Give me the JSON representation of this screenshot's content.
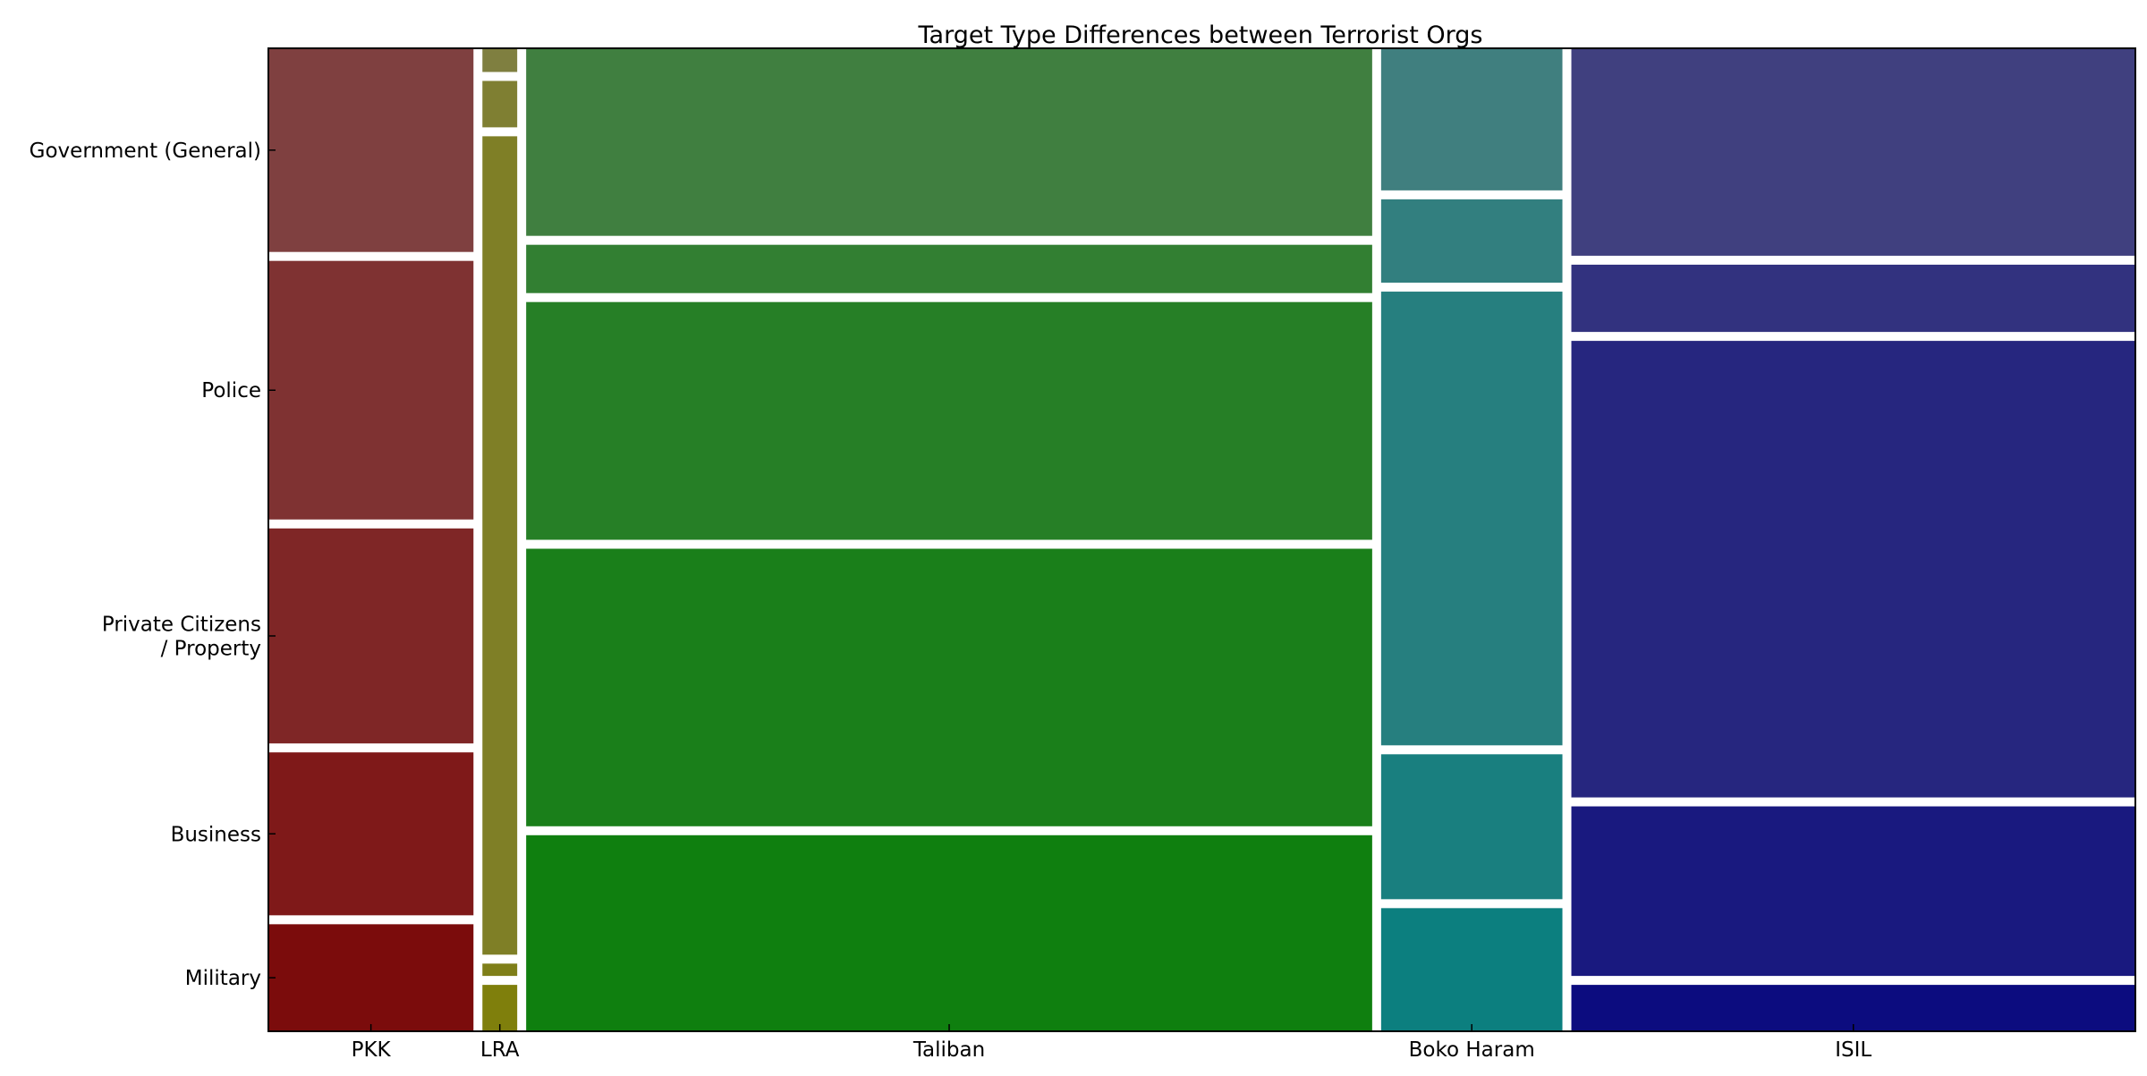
{
  "chart_data": {
    "type": "mosaic",
    "title": "Target Type Differences between Terrorist Orgs",
    "xlabel": "",
    "ylabel": "",
    "x_categories": [
      "PKK",
      "LRA",
      "Taliban",
      "Boko Haram",
      "ISIL"
    ],
    "y_categories": [
      "Government (General)",
      "Police",
      "Private Citizens\n/ Property",
      "Business",
      "Military"
    ],
    "column_share": [
      0.112,
      0.019,
      0.462,
      0.099,
      0.308
    ],
    "cell_share": [
      [
        0.113,
        0.172,
        0.227,
        0.273,
        0.215
      ],
      [
        0.049,
        0.013,
        0.864,
        0.049,
        0.025
      ],
      [
        0.207,
        0.293,
        0.251,
        0.051,
        0.198
      ],
      [
        0.13,
        0.153,
        0.479,
        0.088,
        0.15
      ],
      [
        0.049,
        0.179,
        0.482,
        0.071,
        0.219
      ]
    ],
    "colors": [
      [
        "#7b0c0c",
        "#7f1919",
        "#7f2626",
        "#7f3232",
        "#7f4040"
      ],
      [
        "#7f7f0c",
        "#7f7f19",
        "#7f7f26",
        "#7f7f32",
        "#7f7f40"
      ],
      [
        "#0f7f0f",
        "#1a7f1a",
        "#267f26",
        "#327f32",
        "#407f40"
      ],
      [
        "#0c7f7f",
        "#197f7f",
        "#267f7f",
        "#327f7f",
        "#407f7f"
      ],
      [
        "#0c0c7f",
        "#19197f",
        "#26267f",
        "#32327f",
        "#40407f"
      ]
    ]
  }
}
